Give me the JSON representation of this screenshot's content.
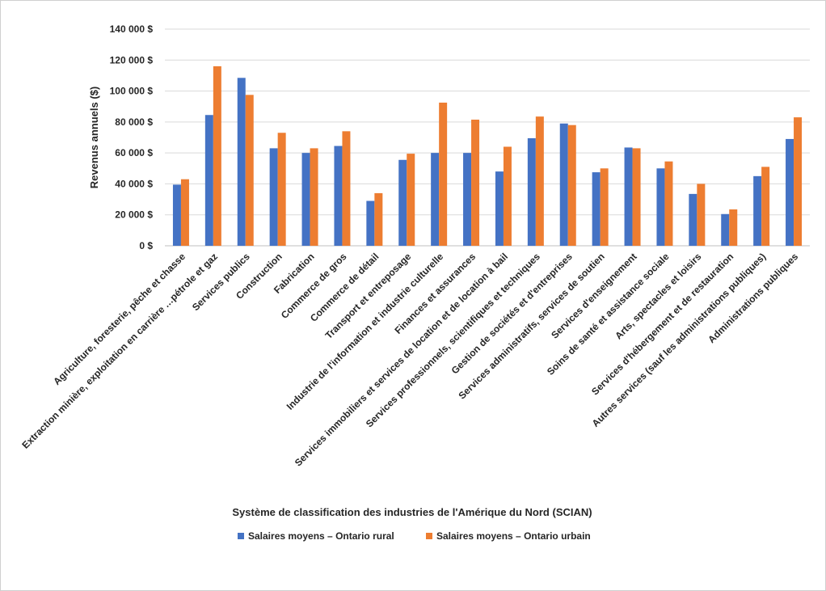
{
  "chart_data": {
    "type": "bar",
    "title": "",
    "xlabel": "Système de classification des industries de l'Amérique du Nord (SCIAN)",
    "ylabel": "Revenus annuels ($)",
    "ylim": [
      0,
      140000
    ],
    "yticks": [
      {
        "value": 0,
        "label": "0 $"
      },
      {
        "value": 20000,
        "label": "20 000 $"
      },
      {
        "value": 40000,
        "label": "40 000 $"
      },
      {
        "value": 60000,
        "label": "60 000 $"
      },
      {
        "value": 80000,
        "label": "80 000 $"
      },
      {
        "value": 100000,
        "label": "100 000 $"
      },
      {
        "value": 120000,
        "label": "120 000 $"
      },
      {
        "value": 140000,
        "label": "140 000 $"
      }
    ],
    "grid": true,
    "legend_position": "bottom",
    "categories": [
      "Agriculture, foresterie, pêche et chasse",
      "Extraction minière, exploitation en carrière …pétrole et gaz",
      "Services publics",
      "Construction",
      "Fabrication",
      "Commerce de gros",
      "Commerce de détail",
      "Transport et entreposage",
      "Industrie de l'information et industrie culturelle",
      "Finances et assurances",
      "Services immobiliers et services de location et de location à bail",
      "Services professionnels, scientifiques et techniques",
      "Gestion de sociétés et d'entreprises",
      "Services administratifs, services de soutien",
      "Services d'enseignement",
      "Soins de santé et assistance sociale",
      "Arts, spectacles et loisirs",
      "Services d'hébergement et de restauration",
      "Autres services (sauf les administrations publiques)",
      "Administrations publiques"
    ],
    "series": [
      {
        "name": "Salaires moyens – Ontario rural",
        "color": "#4472C4",
        "values": [
          39500,
          84500,
          108500,
          63000,
          60000,
          64500,
          29000,
          55500,
          60000,
          60000,
          48000,
          69500,
          79000,
          47500,
          63500,
          50000,
          33500,
          20500,
          45000,
          69000
        ]
      },
      {
        "name": "Salaires moyens – Ontario urbain",
        "color": "#ED7D31",
        "values": [
          43000,
          116000,
          97500,
          73000,
          63000,
          74000,
          34000,
          59500,
          92500,
          81500,
          64000,
          83500,
          78000,
          50000,
          63000,
          54500,
          40000,
          23500,
          51000,
          83000
        ]
      }
    ]
  }
}
